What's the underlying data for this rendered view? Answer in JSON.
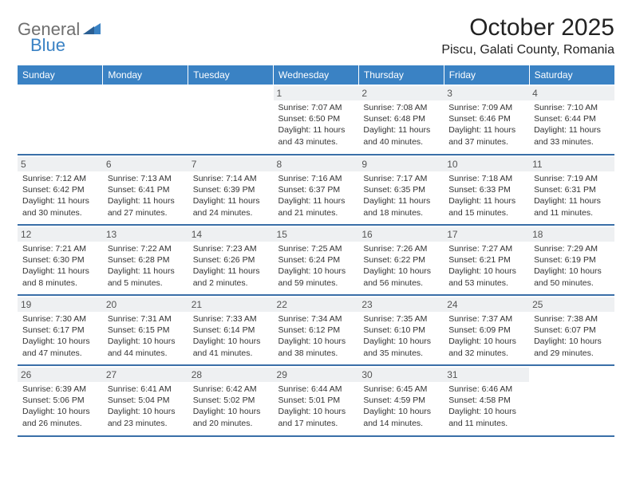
{
  "logo": {
    "word1": "General",
    "word2": "Blue"
  },
  "title": "October 2025",
  "location": "Piscu, Galati County, Romania",
  "colors": {
    "header_bg": "#3a82c4",
    "header_text": "#ffffff",
    "row_border": "#3a6fa8",
    "daynum_bg": "#eef0f2",
    "logo_gray": "#6f6f6f",
    "logo_blue": "#3a82c4"
  },
  "weekdays": [
    "Sunday",
    "Monday",
    "Tuesday",
    "Wednesday",
    "Thursday",
    "Friday",
    "Saturday"
  ],
  "weeks": [
    [
      {
        "n": "",
        "sr": "",
        "ss": "",
        "dl": ""
      },
      {
        "n": "",
        "sr": "",
        "ss": "",
        "dl": ""
      },
      {
        "n": "",
        "sr": "",
        "ss": "",
        "dl": ""
      },
      {
        "n": "1",
        "sr": "7:07 AM",
        "ss": "6:50 PM",
        "dl": "11 hours and 43 minutes."
      },
      {
        "n": "2",
        "sr": "7:08 AM",
        "ss": "6:48 PM",
        "dl": "11 hours and 40 minutes."
      },
      {
        "n": "3",
        "sr": "7:09 AM",
        "ss": "6:46 PM",
        "dl": "11 hours and 37 minutes."
      },
      {
        "n": "4",
        "sr": "7:10 AM",
        "ss": "6:44 PM",
        "dl": "11 hours and 33 minutes."
      }
    ],
    [
      {
        "n": "5",
        "sr": "7:12 AM",
        "ss": "6:42 PM",
        "dl": "11 hours and 30 minutes."
      },
      {
        "n": "6",
        "sr": "7:13 AM",
        "ss": "6:41 PM",
        "dl": "11 hours and 27 minutes."
      },
      {
        "n": "7",
        "sr": "7:14 AM",
        "ss": "6:39 PM",
        "dl": "11 hours and 24 minutes."
      },
      {
        "n": "8",
        "sr": "7:16 AM",
        "ss": "6:37 PM",
        "dl": "11 hours and 21 minutes."
      },
      {
        "n": "9",
        "sr": "7:17 AM",
        "ss": "6:35 PM",
        "dl": "11 hours and 18 minutes."
      },
      {
        "n": "10",
        "sr": "7:18 AM",
        "ss": "6:33 PM",
        "dl": "11 hours and 15 minutes."
      },
      {
        "n": "11",
        "sr": "7:19 AM",
        "ss": "6:31 PM",
        "dl": "11 hours and 11 minutes."
      }
    ],
    [
      {
        "n": "12",
        "sr": "7:21 AM",
        "ss": "6:30 PM",
        "dl": "11 hours and 8 minutes."
      },
      {
        "n": "13",
        "sr": "7:22 AM",
        "ss": "6:28 PM",
        "dl": "11 hours and 5 minutes."
      },
      {
        "n": "14",
        "sr": "7:23 AM",
        "ss": "6:26 PM",
        "dl": "11 hours and 2 minutes."
      },
      {
        "n": "15",
        "sr": "7:25 AM",
        "ss": "6:24 PM",
        "dl": "10 hours and 59 minutes."
      },
      {
        "n": "16",
        "sr": "7:26 AM",
        "ss": "6:22 PM",
        "dl": "10 hours and 56 minutes."
      },
      {
        "n": "17",
        "sr": "7:27 AM",
        "ss": "6:21 PM",
        "dl": "10 hours and 53 minutes."
      },
      {
        "n": "18",
        "sr": "7:29 AM",
        "ss": "6:19 PM",
        "dl": "10 hours and 50 minutes."
      }
    ],
    [
      {
        "n": "19",
        "sr": "7:30 AM",
        "ss": "6:17 PM",
        "dl": "10 hours and 47 minutes."
      },
      {
        "n": "20",
        "sr": "7:31 AM",
        "ss": "6:15 PM",
        "dl": "10 hours and 44 minutes."
      },
      {
        "n": "21",
        "sr": "7:33 AM",
        "ss": "6:14 PM",
        "dl": "10 hours and 41 minutes."
      },
      {
        "n": "22",
        "sr": "7:34 AM",
        "ss": "6:12 PM",
        "dl": "10 hours and 38 minutes."
      },
      {
        "n": "23",
        "sr": "7:35 AM",
        "ss": "6:10 PM",
        "dl": "10 hours and 35 minutes."
      },
      {
        "n": "24",
        "sr": "7:37 AM",
        "ss": "6:09 PM",
        "dl": "10 hours and 32 minutes."
      },
      {
        "n": "25",
        "sr": "7:38 AM",
        "ss": "6:07 PM",
        "dl": "10 hours and 29 minutes."
      }
    ],
    [
      {
        "n": "26",
        "sr": "6:39 AM",
        "ss": "5:06 PM",
        "dl": "10 hours and 26 minutes."
      },
      {
        "n": "27",
        "sr": "6:41 AM",
        "ss": "5:04 PM",
        "dl": "10 hours and 23 minutes."
      },
      {
        "n": "28",
        "sr": "6:42 AM",
        "ss": "5:02 PM",
        "dl": "10 hours and 20 minutes."
      },
      {
        "n": "29",
        "sr": "6:44 AM",
        "ss": "5:01 PM",
        "dl": "10 hours and 17 minutes."
      },
      {
        "n": "30",
        "sr": "6:45 AM",
        "ss": "4:59 PM",
        "dl": "10 hours and 14 minutes."
      },
      {
        "n": "31",
        "sr": "6:46 AM",
        "ss": "4:58 PM",
        "dl": "10 hours and 11 minutes."
      },
      {
        "n": "",
        "sr": "",
        "ss": "",
        "dl": ""
      }
    ]
  ],
  "labels": {
    "sunrise": "Sunrise:",
    "sunset": "Sunset:",
    "daylight": "Daylight:"
  }
}
